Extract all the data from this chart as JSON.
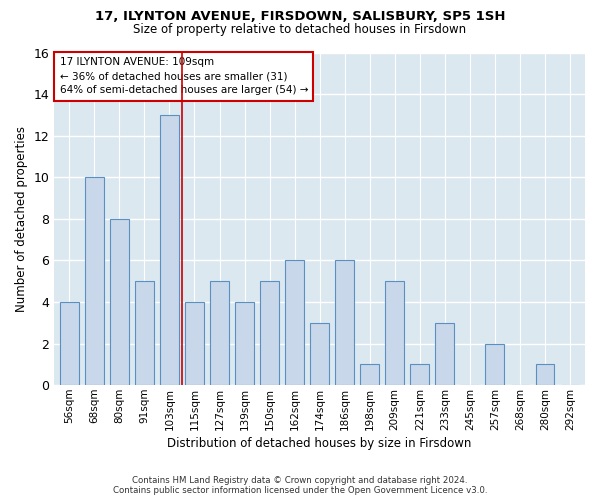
{
  "title": "17, ILYNTON AVENUE, FIRSDOWN, SALISBURY, SP5 1SH",
  "subtitle": "Size of property relative to detached houses in Firsdown",
  "xlabel": "Distribution of detached houses by size in Firsdown",
  "ylabel": "Number of detached properties",
  "categories": [
    "56sqm",
    "68sqm",
    "80sqm",
    "91sqm",
    "103sqm",
    "115sqm",
    "127sqm",
    "139sqm",
    "150sqm",
    "162sqm",
    "174sqm",
    "186sqm",
    "198sqm",
    "209sqm",
    "221sqm",
    "233sqm",
    "245sqm",
    "257sqm",
    "268sqm",
    "280sqm",
    "292sqm"
  ],
  "values": [
    4,
    10,
    8,
    5,
    13,
    4,
    5,
    4,
    5,
    6,
    3,
    6,
    1,
    5,
    1,
    3,
    0,
    2,
    0,
    1,
    0
  ],
  "bar_color": "#c8d8ea",
  "bar_edge_color": "#5a8fc0",
  "fig_background_color": "#ffffff",
  "plot_background_color": "#dce8f0",
  "grid_color": "#ffffff",
  "annotation_text": "17 ILYNTON AVENUE: 109sqm\n← 36% of detached houses are smaller (31)\n64% of semi-detached houses are larger (54) →",
  "annotation_box_color": "#ffffff",
  "annotation_box_edge_color": "#cc0000",
  "property_bar_index": 4,
  "vline_color": "#cc0000",
  "ylim": [
    0,
    16
  ],
  "yticks": [
    0,
    2,
    4,
    6,
    8,
    10,
    12,
    14,
    16
  ],
  "footer_line1": "Contains HM Land Registry data © Crown copyright and database right 2024.",
  "footer_line2": "Contains public sector information licensed under the Open Government Licence v3.0."
}
